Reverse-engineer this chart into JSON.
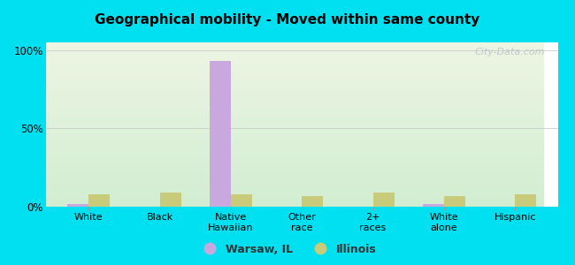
{
  "title": "Geographical mobility - Moved within same county",
  "categories": [
    "White",
    "Black",
    "Native\nHawaiian",
    "Other\nrace",
    "2+\nraces",
    "White\nalone",
    "Hispanic"
  ],
  "warsaw_values": [
    1.5,
    0,
    93,
    0,
    0,
    1.5,
    0
  ],
  "illinois_values": [
    8,
    9,
    8,
    7,
    9,
    7,
    8
  ],
  "warsaw_color": "#c9a8e0",
  "illinois_color": "#c8cc7a",
  "bar_width": 0.3,
  "ylim": [
    0,
    105
  ],
  "yticks": [
    0,
    50,
    100
  ],
  "ytick_labels": [
    "0%",
    "50%",
    "100%"
  ],
  "background_outer": "#00e0f0",
  "background_inner_top": "#eef4e4",
  "background_inner_bottom": "#d8eed8",
  "legend_warsaw": "Warsaw, IL",
  "legend_illinois": "Illinois",
  "watermark": "City-Data.com"
}
